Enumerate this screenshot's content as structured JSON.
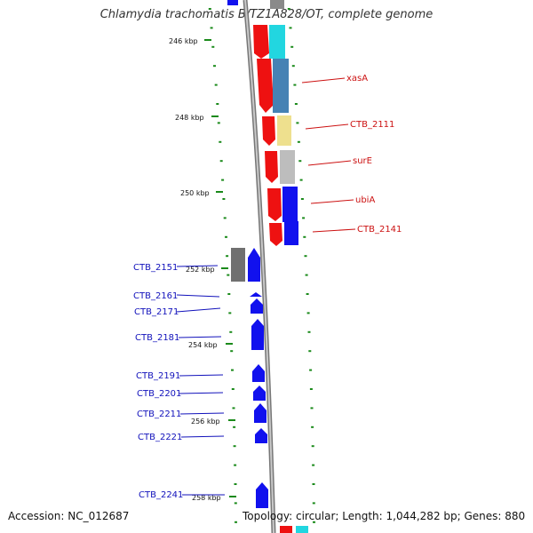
{
  "title": "Chlamydia trachomatis B/TZ1A828/OT, complete genome",
  "footer": {
    "accession": "Accession: NC_012687",
    "summary": "Topology: circular; Length: 1,044,282 bp; Genes: 880"
  },
  "scale_labels": [
    "246 kbp",
    "248 kbp",
    "250 kbp",
    "252 kbp",
    "254 kbp",
    "256 kbp",
    "258 kbp"
  ],
  "colors": {
    "backbone": "#8a8a8a",
    "tick": "#1a8a1a",
    "cds": "#ee1111",
    "forward_gene": "#1111ee",
    "right_label": "#cc1111",
    "left_label": "#1111bb"
  },
  "right_labels": [
    "xasA",
    "CTB_2111",
    "surE",
    "ubiA",
    "CTB_2141"
  ],
  "left_labels": [
    "CTB_2151",
    "CTB_2161",
    "CTB_2171",
    "CTB_2181",
    "CTB_2191",
    "CTB_2201",
    "CTB_2211",
    "CTB_2221",
    "CTB_2241"
  ]
}
